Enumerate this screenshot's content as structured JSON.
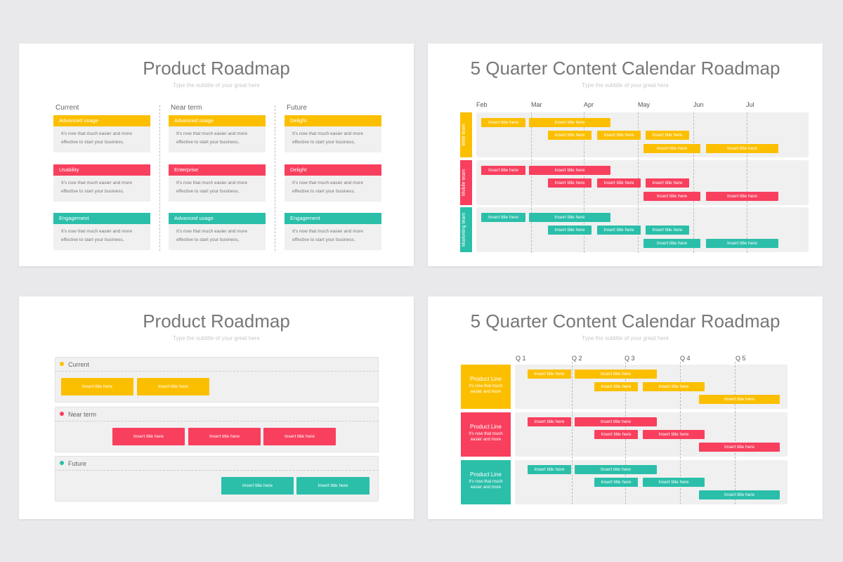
{
  "colors": [
    "#fcbf00",
    "#f83f5e",
    "#2bbfaa"
  ],
  "slides": [
    {
      "title": "Product Roadmap",
      "subtitle": "Type the subtitle of your great here",
      "columns": [
        {
          "heading": "Current",
          "cards": [
            {
              "label": "Advanced usage",
              "text": "It's now that much easier and more effective to  start your business,"
            },
            {
              "label": "Usability",
              "text": "It's now that much easier and more effective to start your business,"
            },
            {
              "label": "Engagement",
              "text": "It's now that much easier and more effective to start your business,"
            }
          ]
        },
        {
          "heading": "Near term",
          "cards": [
            {
              "label": "Advanced usage",
              "text": "It's now that much easier and more effective to start your business,"
            },
            {
              "label": "Enterprise",
              "text": "It's now that much easier and more effective to start your business,"
            },
            {
              "label": "Advanced usage",
              "text": "It's now that much easier and more effective to start your business,"
            }
          ]
        },
        {
          "heading": "Future",
          "cards": [
            {
              "label": "Delight",
              "text": "It's now that much easier and more effective to start your business,"
            },
            {
              "label": "Delight",
              "text": "It's now that much easier and more effective to start your business,"
            },
            {
              "label": "Engagement",
              "text": "It's now that much easier and more effective to start your business,"
            }
          ]
        }
      ]
    },
    {
      "title": "5 Quarter Content Calendar Roadmap",
      "subtitle": "Type the subtitle of your great here",
      "months": [
        "Feb",
        "Mar",
        "Apr",
        "May",
        "Jun",
        "Jul"
      ],
      "teams": [
        {
          "name": "Web team",
          "bars": [
            [
              "Insert title here",
              "Insert title here"
            ],
            [
              "Insert title here",
              "Insert title here",
              "Insert title here"
            ],
            [
              "Insert title here",
              "Insert title here"
            ]
          ]
        },
        {
          "name": "Mobile team",
          "bars": [
            [
              "Insert title here",
              "Insert title here"
            ],
            [
              "Insert title here",
              "Insert title here",
              "Insert title here"
            ],
            [
              "Insert title here",
              "Insert title here"
            ]
          ]
        },
        {
          "name": "Marketing team",
          "bars": [
            [
              "Insert title here",
              "Insert title here"
            ],
            [
              "Insert title here",
              "Insert title here",
              "Insert title here"
            ],
            [
              "Insert title here",
              "Insert title here"
            ]
          ]
        }
      ]
    },
    {
      "title": "Product Roadmap",
      "subtitle": "Type the subtitle of your great here",
      "lanes": [
        {
          "name": "Current",
          "bars": [
            "Insert title here",
            "Insert title here"
          ]
        },
        {
          "name": "Near term",
          "bars": [
            "Insert title here",
            "Insert title here",
            "Insert title here"
          ]
        },
        {
          "name": "Future",
          "bars": [
            "Insert title here",
            "Insert title here"
          ]
        }
      ]
    },
    {
      "title": "5 Quarter Content Calendar Roadmap",
      "subtitle": "Type the subtitle of your great here",
      "quarters": [
        "Q 1",
        "Q 2",
        "Q 3",
        "Q 4",
        "Q 5"
      ],
      "rows": [
        {
          "title": "Product Line",
          "text": "It's now that much easier and more",
          "bars": [
            [
              "Insert title here",
              "Insert title here"
            ],
            [
              "Insert title here",
              "Insert title here"
            ],
            [
              "Insert title here"
            ]
          ]
        },
        {
          "title": "Product Line",
          "text": "It's now that much easier and more",
          "bars": [
            [
              "Insert title here",
              "Insert title here"
            ],
            [
              "Insert title here",
              "Insert title here"
            ],
            [
              "Insert title here"
            ]
          ]
        },
        {
          "title": "Product Line",
          "text": "It's now that much easier and more",
          "bars": [
            [
              "Insert title here",
              "Insert title here"
            ],
            [
              "Insert title here",
              "Insert title here"
            ],
            [
              "Insert title here"
            ]
          ]
        }
      ]
    }
  ]
}
